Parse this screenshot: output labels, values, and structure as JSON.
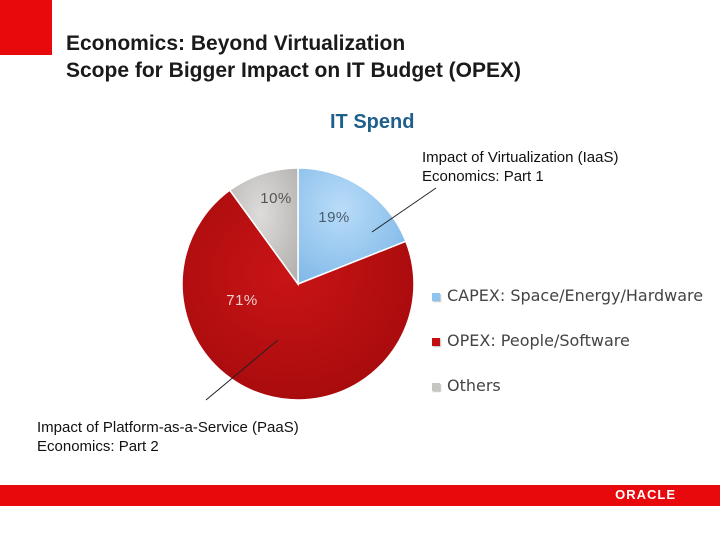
{
  "slide": {
    "title_line1": "Economics: Beyond Virtualization",
    "title_line2": "Scope for Bigger Impact on IT Budget  (OPEX)",
    "brand_logo": "ORACLE"
  },
  "callouts": {
    "top_line1": "Impact of Virtualization (IaaS)",
    "top_line2": "Economics: Part 1",
    "bottom_line1": "Impact of Platform-as-a-Service (PaaS)",
    "bottom_line2": "Economics: Part 2"
  },
  "colors": {
    "brand_red": "#e8090d",
    "capex": "#8fc4ef",
    "opex": "#c10e10",
    "others": "#c7c5c2",
    "chart_title": "#1f5f8b"
  },
  "chart_data": {
    "type": "pie",
    "title": "IT Spend",
    "categories": [
      "CAPEX: Space/Energy/Hardware",
      "OPEX: People/Software",
      "Others"
    ],
    "values": [
      19,
      71,
      10
    ],
    "labels": [
      "19%",
      "71%",
      "10%"
    ],
    "legend_placement": "right"
  }
}
